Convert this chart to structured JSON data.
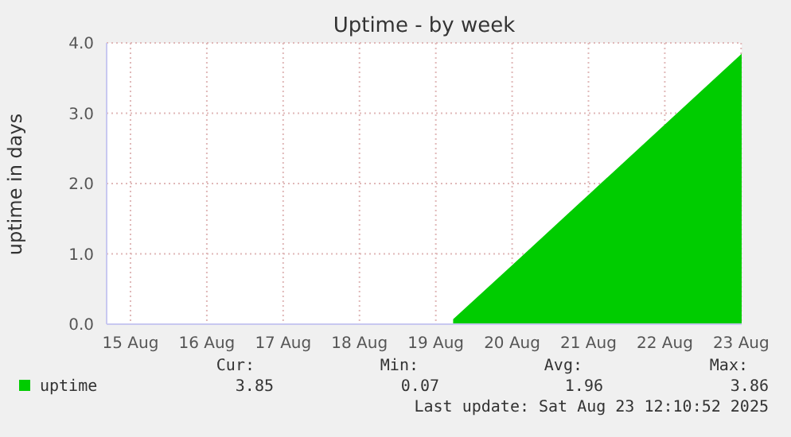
{
  "chart_data": {
    "type": "area",
    "title": "Uptime - by week",
    "ylabel": "uptime in days",
    "x": [
      "2025-08-19T17:27",
      "2025-08-20T12:00",
      "2025-08-21T12:00",
      "2025-08-22T12:00",
      "2025-08-23T12:00",
      "2025-08-23T12:10"
    ],
    "series": [
      {
        "name": "uptime",
        "color": "#00cc00",
        "values": [
          0.07,
          0.84,
          1.84,
          2.84,
          3.84,
          3.85
        ]
      }
    ],
    "xlim": [
      "2025-08-15T04:30",
      "2025-08-23T12:10"
    ],
    "xticks": [
      {
        "value": "2025-08-15T12:00",
        "label": "15 Aug"
      },
      {
        "value": "2025-08-16T12:00",
        "label": "16 Aug"
      },
      {
        "value": "2025-08-17T12:00",
        "label": "17 Aug"
      },
      {
        "value": "2025-08-18T12:00",
        "label": "18 Aug"
      },
      {
        "value": "2025-08-19T12:00",
        "label": "19 Aug"
      },
      {
        "value": "2025-08-20T12:00",
        "label": "20 Aug"
      },
      {
        "value": "2025-08-21T12:00",
        "label": "21 Aug"
      },
      {
        "value": "2025-08-22T12:00",
        "label": "22 Aug"
      },
      {
        "value": "2025-08-23T12:00",
        "label": "23 Aug"
      }
    ],
    "ylim": [
      0,
      4
    ],
    "yticks": [
      {
        "value": 0,
        "label": "0.0"
      },
      {
        "value": 1,
        "label": "1.0"
      },
      {
        "value": 2,
        "label": "2.0"
      },
      {
        "value": 3,
        "label": "3.0"
      },
      {
        "value": 4,
        "label": "4.0"
      }
    ],
    "grid": true,
    "legend": "bottom left",
    "annotations": [
      "Cur:",
      "Min:",
      "Avg:",
      "Max:",
      "3.85",
      "0.07",
      "1.96",
      "3.86",
      "Last update: Sat Aug 23 12:10:52 2025"
    ]
  }
}
